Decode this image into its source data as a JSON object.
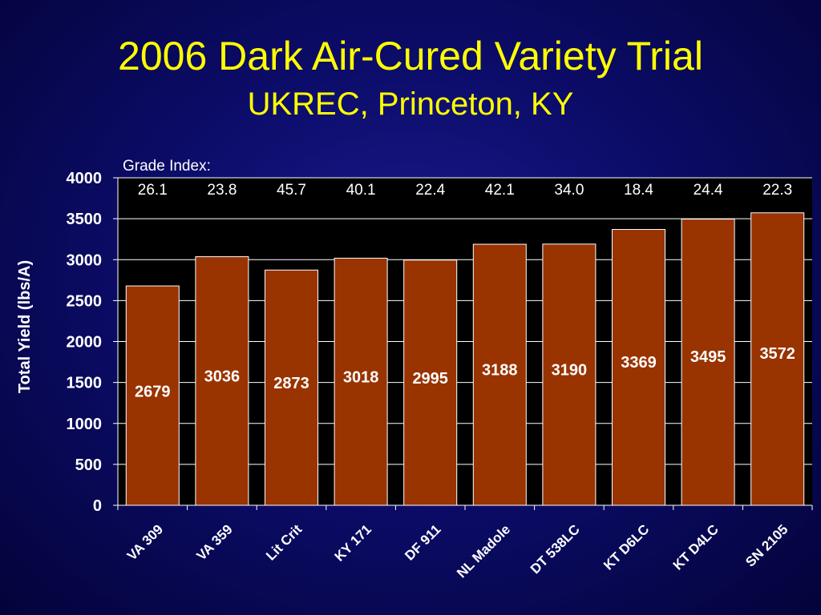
{
  "header": {
    "title": "2006 Dark Air-Cured Variety Trial",
    "subtitle": "UKREC, Princeton, KY"
  },
  "colors": {
    "bar_fill": "#993300",
    "bar_stroke": "#ffffff",
    "plot_background": "#000000",
    "title": "#ffff00",
    "text": "#ffffff"
  },
  "chart_data": {
    "type": "bar",
    "title": "2006 Dark Air-Cured Variety Trial",
    "subtitle": "UKREC, Princeton, KY",
    "xlabel": "",
    "ylabel": "Total Yield (lbs/A)",
    "ylim": [
      0,
      4000
    ],
    "yticks": [
      0,
      500,
      1000,
      1500,
      2000,
      2500,
      3000,
      3500,
      4000
    ],
    "grid": true,
    "categories": [
      "VA 309",
      "VA 359",
      "Lit Crit",
      "KY 171",
      "DF 911",
      "NL Madole",
      "DT 538LC",
      "KT D6LC",
      "KT D4LC",
      "SN 2105"
    ],
    "values": [
      2679,
      3036,
      2873,
      3018,
      2995,
      3188,
      3190,
      3369,
      3495,
      3572
    ],
    "annotation_label": "Grade Index:",
    "grade_index": [
      "26.1",
      "23.8",
      "45.7",
      "40.1",
      "22.4",
      "42.1",
      "34.0",
      "18.4",
      "24.4",
      "22.3"
    ]
  }
}
